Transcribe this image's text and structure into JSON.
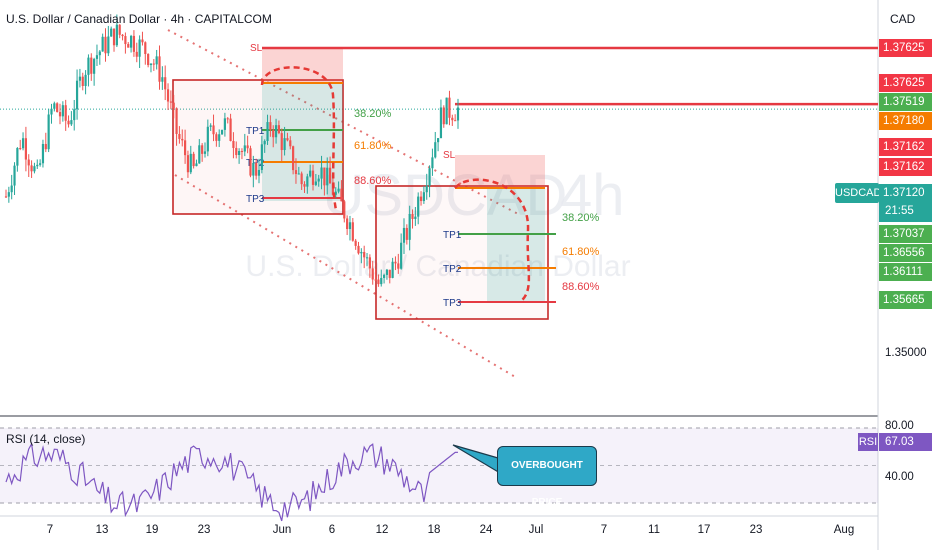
{
  "header": {
    "title": "U.S. Dollar / Canadian Dollar · 4h · CAPITALCOM",
    "currency": "CAD"
  },
  "watermark": {
    "symbol": "USDCAD, 4h",
    "name": "U.S. Dollar / Canadian Dollar"
  },
  "colors": {
    "up": "#26a69a",
    "down": "#ef5350",
    "sl": "#e53942",
    "tp1": "#43a047",
    "tp2": "#f57c00",
    "tp3": "#e53942",
    "rsi": "#7e57c2",
    "callout": "#2fa8c7"
  },
  "price_tags": [
    {
      "label": "1.37625",
      "price": 1.37625,
      "color": "#f23645"
    },
    {
      "label": "1.37625",
      "price": 1.37625,
      "color": "#f23645",
      "stack": 1
    },
    {
      "label": "1.37519",
      "price": 1.37519,
      "color": "#4caf50"
    },
    {
      "label": "1.37180",
      "price": 1.3718,
      "color": "#f57c00"
    },
    {
      "label": "1.37162",
      "price": 1.37162,
      "color": "#f23645"
    },
    {
      "label": "1.37162",
      "price": 1.37162,
      "color": "#f23645",
      "stack": 1
    },
    {
      "label": "1.37037",
      "price": 1.37037,
      "color": "#4caf50"
    },
    {
      "label": "1.36556",
      "price": 1.36556,
      "color": "#4caf50"
    },
    {
      "label": "1.36111",
      "price": 1.36111,
      "color": "#4caf50"
    },
    {
      "label": "1.35665",
      "price": 1.35665,
      "color": "#4caf50"
    }
  ],
  "axis_label": "1.35000",
  "current": {
    "symbol": "USDCAD",
    "price": "1.37120",
    "timer": "21:55"
  },
  "rsi": {
    "title": "RSI (14, close)",
    "badge": "RSI",
    "value": "67.03",
    "level_high": "80.00",
    "level_low": "40.00"
  },
  "callout": {
    "text": "OVERBOUGHT PRICE"
  },
  "setups": [
    {
      "sl_label": "SL",
      "tp_labels": [
        "TP1",
        "TP2",
        "TP3"
      ],
      "fib_labels": [
        "38.20%",
        "61.80%",
        "88.60%"
      ]
    },
    {
      "sl_label": "SL",
      "tp_labels": [
        "TP1",
        "TP2",
        "TP3"
      ],
      "fib_labels": [
        "38.20%",
        "61.80%",
        "88.60%"
      ]
    }
  ],
  "chart_data": {
    "type": "candlestick",
    "symbol": "USDCAD",
    "timeframe": "4h",
    "x_tick_labels": [
      "7",
      "13",
      "19",
      "23",
      "Jun",
      "6",
      "12",
      "18",
      "24",
      "Jul",
      "7",
      "11",
      "17",
      "23",
      "Aug"
    ],
    "y_range": [
      1.3455,
      1.3775
    ],
    "price_series_approx": [
      1.364,
      1.369,
      1.3655,
      1.3715,
      1.37,
      1.3745,
      1.376,
      1.3775,
      1.377,
      1.376,
      1.374,
      1.369,
      1.366,
      1.369,
      1.37,
      1.368,
      1.366,
      1.37,
      1.368,
      1.365,
      1.3665,
      1.3645,
      1.362,
      1.359,
      1.3565,
      1.3585,
      1.362,
      1.366,
      1.371,
      1.3712
    ],
    "levels": {
      "setup_1": {
        "sl": 1.37625,
        "tp1": 1.37519,
        "tp2": 1.3718,
        "tp3": 1.368
      },
      "setup_2": {
        "sl": 1.37162,
        "tp1": 1.36556,
        "tp2": 1.36111,
        "tp3": 1.35665
      },
      "current_price": 1.3712
    },
    "rsi": {
      "range": [
        0,
        100
      ],
      "overbought": 80,
      "oversold": 40,
      "last": 67.03
    }
  }
}
